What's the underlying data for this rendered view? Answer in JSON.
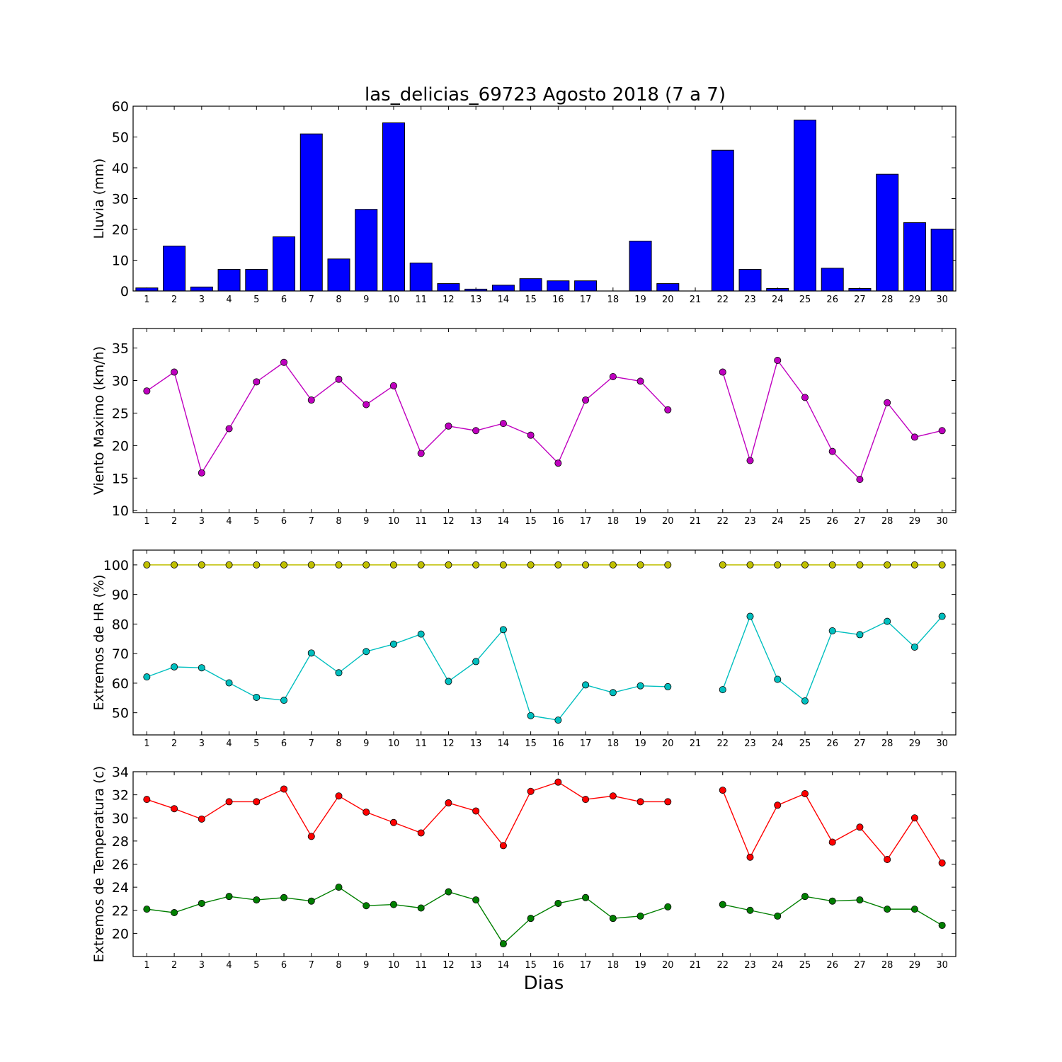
{
  "chart_data": {
    "title": "las_delicias_69723 Agosto 2018  (7 a 7)",
    "xlabel": "Dias",
    "days": [
      1,
      2,
      3,
      4,
      5,
      6,
      7,
      8,
      9,
      10,
      11,
      12,
      13,
      14,
      15,
      16,
      17,
      18,
      19,
      20,
      21,
      22,
      23,
      24,
      25,
      26,
      27,
      28,
      29,
      30
    ],
    "panels": [
      {
        "id": "lluvia",
        "type": "bar",
        "ylabel": "Lluvia (mm)",
        "ylim": [
          0,
          60
        ],
        "yticks": [
          0,
          10,
          20,
          30,
          40,
          50,
          60
        ],
        "series": [
          {
            "color": "#0000ff",
            "values": [
              1.0,
              14.6,
              1.3,
              7.0,
              7.0,
              17.6,
              51.0,
              10.4,
              26.5,
              54.6,
              9.1,
              2.4,
              0.6,
              1.9,
              4.0,
              3.3,
              3.3,
              0,
              16.2,
              2.4,
              0,
              45.7,
              7.0,
              0.8,
              55.5,
              7.4,
              0.8,
              37.9,
              22.2,
              20.1
            ]
          }
        ]
      },
      {
        "id": "viento",
        "type": "line",
        "ylabel": "Viento Maximo (km/h)",
        "ylim": [
          9.7,
          38
        ],
        "yticks": [
          10,
          15,
          20,
          25,
          30,
          35
        ],
        "series": [
          {
            "color": "#bf00bf",
            "values": [
              28.4,
              31.3,
              15.8,
              22.6,
              29.8,
              32.8,
              27.0,
              30.2,
              26.3,
              29.2,
              18.8,
              23.0,
              22.3,
              23.4,
              21.6,
              17.3,
              27.0,
              30.6,
              29.9,
              25.5,
              null,
              31.3,
              17.7,
              33.1,
              27.4,
              19.1,
              14.8,
              26.6,
              21.3,
              22.3
            ]
          }
        ]
      },
      {
        "id": "hr",
        "type": "line",
        "ylabel": "Extremos de HR (%)",
        "ylim": [
          42.5,
          105
        ],
        "yticks": [
          50,
          60,
          70,
          80,
          90,
          100
        ],
        "series": [
          {
            "color": "#bfbf00",
            "values": [
              100,
              100,
              100,
              100,
              100,
              100,
              100,
              100,
              100,
              100,
              100,
              100,
              100,
              100,
              100,
              100,
              100,
              100,
              100,
              100,
              null,
              100,
              100,
              100,
              100,
              100,
              100,
              100,
              100,
              100
            ]
          },
          {
            "color": "#00bfbf",
            "values": [
              62.1,
              65.5,
              65.2,
              60.1,
              55.2,
              54.2,
              70.2,
              63.5,
              70.7,
              73.2,
              76.6,
              60.6,
              67.3,
              78.1,
              49.0,
              47.5,
              59.4,
              56.8,
              59.1,
              58.8,
              null,
              57.8,
              82.6,
              61.3,
              54.0,
              77.7,
              76.4,
              80.9,
              72.2,
              82.6
            ]
          }
        ]
      },
      {
        "id": "temperatura",
        "type": "line",
        "ylabel": "Extremos de Temperatura (c)",
        "ylim": [
          18,
          34
        ],
        "yticks": [
          20,
          22,
          24,
          26,
          28,
          30,
          32,
          34
        ],
        "series": [
          {
            "color": "#ff0000",
            "values": [
              31.6,
              30.8,
              29.9,
              31.4,
              31.4,
              32.5,
              28.4,
              31.9,
              30.5,
              29.6,
              28.7,
              31.3,
              30.6,
              27.6,
              32.3,
              33.1,
              31.6,
              31.9,
              31.4,
              31.4,
              null,
              32.4,
              26.6,
              31.1,
              32.1,
              27.9,
              29.2,
              26.4,
              30.0,
              26.1
            ]
          },
          {
            "color": "#007f00",
            "values": [
              22.1,
              21.8,
              22.6,
              23.2,
              22.9,
              23.1,
              22.8,
              24.0,
              22.4,
              22.5,
              22.2,
              23.6,
              22.9,
              19.1,
              21.3,
              22.6,
              23.1,
              21.3,
              21.5,
              22.3,
              null,
              22.5,
              22.0,
              21.5,
              23.2,
              22.8,
              22.9,
              22.1,
              22.1,
              20.7
            ]
          }
        ]
      }
    ]
  }
}
